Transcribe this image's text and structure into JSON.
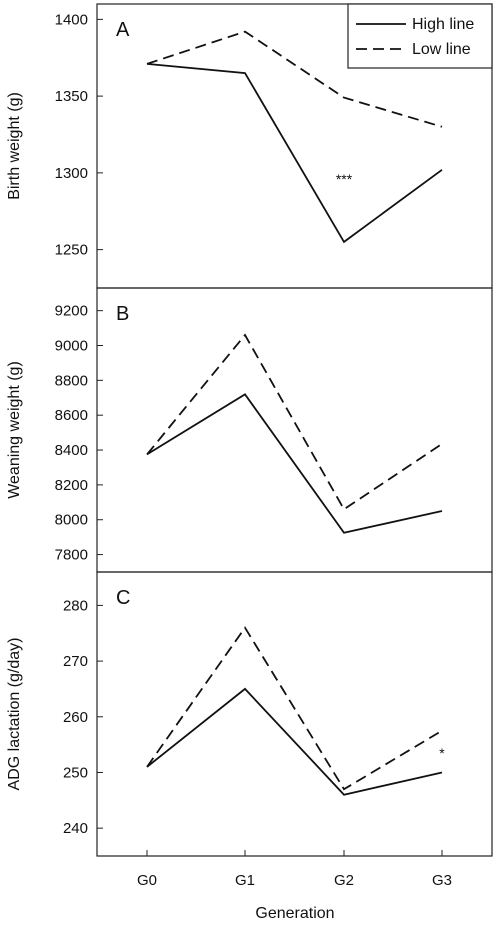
{
  "chart_data": [
    {
      "panel": "A",
      "type": "line",
      "ylabel": "Birth weight (g)",
      "categories": [
        "G0",
        "G1",
        "G2",
        "G3"
      ],
      "ylim": [
        1225,
        1410
      ],
      "yticks": [
        1250,
        1300,
        1350,
        1400
      ],
      "series": [
        {
          "name": "High line",
          "style": "solid",
          "values": [
            1371,
            1365,
            1255,
            1302
          ]
        },
        {
          "name": "Low line",
          "style": "dashed",
          "values": [
            1371,
            1392,
            1349,
            1330
          ]
        }
      ],
      "annotations": [
        {
          "text": "***",
          "category": "G2",
          "y": 1296
        }
      ],
      "legend": {
        "placement": "top-right",
        "entries": [
          "High line",
          "Low line"
        ]
      }
    },
    {
      "panel": "B",
      "type": "line",
      "ylabel": "Weaning weight (g)",
      "categories": [
        "G0",
        "G1",
        "G2",
        "G3"
      ],
      "ylim": [
        7700,
        9330
      ],
      "yticks": [
        7800,
        8000,
        8200,
        8400,
        8600,
        8800,
        9000,
        9200
      ],
      "series": [
        {
          "name": "High line",
          "style": "solid",
          "values": [
            8375,
            8720,
            7925,
            8050
          ]
        },
        {
          "name": "Low line",
          "style": "dashed",
          "values": [
            8375,
            9060,
            8060,
            8435
          ]
        }
      ],
      "annotations": []
    },
    {
      "panel": "C",
      "type": "line",
      "ylabel": "ADG lactation (g/day)",
      "categories": [
        "G0",
        "G1",
        "G2",
        "G3"
      ],
      "ylim": [
        235,
        286
      ],
      "yticks": [
        240,
        250,
        260,
        270,
        280
      ],
      "series": [
        {
          "name": "High line",
          "style": "solid",
          "values": [
            251,
            265,
            246,
            250
          ]
        },
        {
          "name": "Low line",
          "style": "dashed",
          "values": [
            251,
            276,
            247,
            257.5
          ]
        }
      ],
      "annotations": [
        {
          "text": "*",
          "category": "G3",
          "y": 253.5
        }
      ]
    }
  ],
  "xlabel": "Generation",
  "colors": {
    "line": "#111111",
    "frame": "#222222"
  }
}
